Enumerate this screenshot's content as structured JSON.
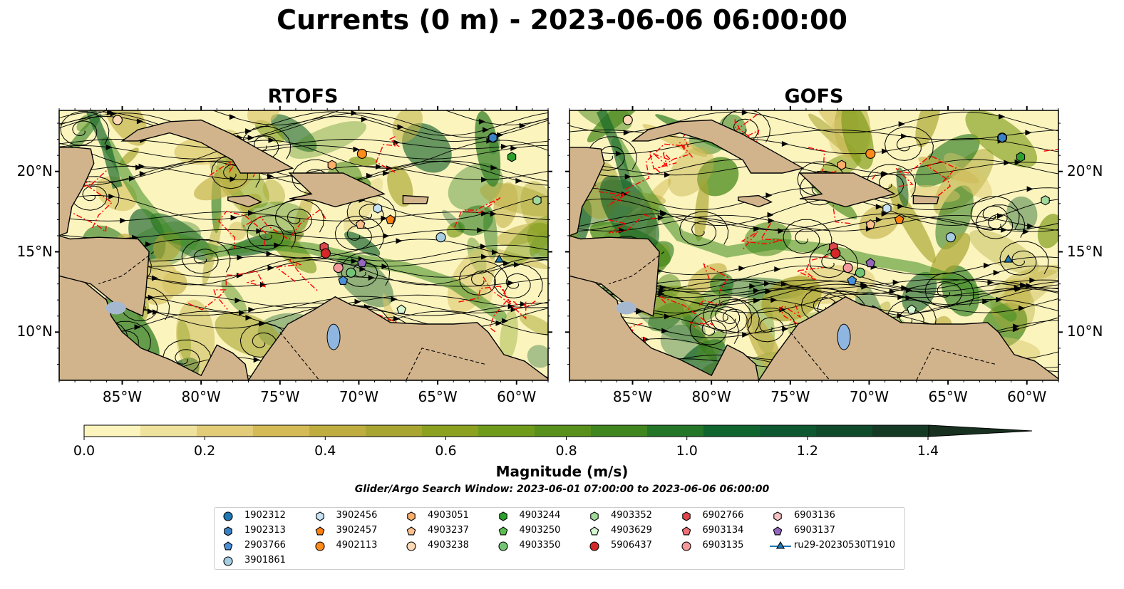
{
  "title": "Currents (0 m) - 2023-06-06 06:00:00",
  "panels": [
    {
      "title": "RTOFS"
    },
    {
      "title": "GOFS"
    }
  ],
  "axes": {
    "lon_ticks": [
      "85°W",
      "80°W",
      "75°W",
      "70°W",
      "65°W",
      "60°W"
    ],
    "lat_ticks": [
      "20°N",
      "15°N",
      "10°N"
    ]
  },
  "colorbar": {
    "label": "Magnitude (m/s)",
    "ticks": [
      "0.0",
      "0.2",
      "0.4",
      "0.6",
      "0.8",
      "1.0",
      "1.2",
      "1.4"
    ],
    "range": [
      0,
      1.5
    ],
    "extend": "max",
    "colors": [
      "#fbf4bd",
      "#efe29d",
      "#e2cc78",
      "#d4bb55",
      "#bfae3f",
      "#a9a531",
      "#8ca11f",
      "#6f9b1a",
      "#58901c",
      "#3f861f",
      "#237628",
      "#10652f",
      "#0d5830",
      "#0f4a2b",
      "#143a25",
      "#18301f"
    ]
  },
  "search_window": "Glider/Argo Search Window: 2023-06-01 07:00:00 to 2023-06-06 06:00:00",
  "map_colors": {
    "land": "#d2b48c",
    "ocean_low": "#fbf4bd",
    "ocean_mid": "#c2b24a",
    "ocean_high": "#2f7d22",
    "front": "#ff0000",
    "rivers": "#9db5d6"
  },
  "legend": [
    {
      "label": "1902312",
      "marker": "circle",
      "color": "#1f77b4"
    },
    {
      "label": "1902313",
      "marker": "hexagon",
      "color": "#3b82c4"
    },
    {
      "label": "2903766",
      "marker": "pentagon",
      "color": "#4a90d9"
    },
    {
      "label": "3901861",
      "marker": "circle",
      "color": "#a6cee3"
    },
    {
      "label": "3902456",
      "marker": "hexagon",
      "color": "#c6e2f5"
    },
    {
      "label": "3902457",
      "marker": "pentagon",
      "color": "#ff7f0e"
    },
    {
      "label": "4902113",
      "marker": "circle",
      "color": "#ff8c1a"
    },
    {
      "label": "4903051",
      "marker": "hexagon",
      "color": "#fdae6b"
    },
    {
      "label": "4903237",
      "marker": "pentagon",
      "color": "#fdc08c"
    },
    {
      "label": "4903238",
      "marker": "circle",
      "color": "#fdd9b5"
    },
    {
      "label": "4903244",
      "marker": "hexagon",
      "color": "#2ca02c"
    },
    {
      "label": "4903250",
      "marker": "pentagon",
      "color": "#5bbf4f"
    },
    {
      "label": "4903350",
      "marker": "circle",
      "color": "#74c476"
    },
    {
      "label": "4903352",
      "marker": "hexagon",
      "color": "#a1d99b"
    },
    {
      "label": "4903629",
      "marker": "pentagon",
      "color": "#d4f5cf"
    },
    {
      "label": "5906437",
      "marker": "circle",
      "color": "#d62728"
    },
    {
      "label": "6902766",
      "marker": "hexagon",
      "color": "#e0474c"
    },
    {
      "label": "6903134",
      "marker": "pentagon",
      "color": "#ef7177"
    },
    {
      "label": "6903135",
      "marker": "circle",
      "color": "#f4999b"
    },
    {
      "label": "6903136",
      "marker": "hexagon",
      "color": "#f7c1c1"
    },
    {
      "label": "6903137",
      "marker": "pentagon",
      "color": "#9467bd"
    },
    {
      "label": "ru29-20230530T1910",
      "marker": "triangle-line",
      "color": "#1f77b4"
    }
  ],
  "floats": [
    {
      "label": "1902312",
      "lon": -61.5,
      "lat": 22.1
    },
    {
      "label": "1902313",
      "lon": -61.5,
      "lat": 22.1
    },
    {
      "label": "4903244",
      "lon": -60.3,
      "lat": 20.9
    },
    {
      "label": "4902113",
      "lon": -69.8,
      "lat": 21.1
    },
    {
      "label": "4903051",
      "lon": -71.7,
      "lat": 20.4
    },
    {
      "label": "4903352",
      "lon": -58.7,
      "lat": 18.2
    },
    {
      "label": "3902456",
      "lon": -68.8,
      "lat": 17.7
    },
    {
      "label": "3902457",
      "lon": -68.0,
      "lat": 17.0
    },
    {
      "label": "4903237",
      "lon": -69.9,
      "lat": 16.7
    },
    {
      "label": "3901861",
      "lon": -64.8,
      "lat": 15.9
    },
    {
      "label": "6902766",
      "lon": -72.2,
      "lat": 15.3
    },
    {
      "label": "5906437",
      "lon": -72.1,
      "lat": 14.9
    },
    {
      "label": "6903135",
      "lon": -71.3,
      "lat": 14.0
    },
    {
      "label": "4903350",
      "lon": -70.5,
      "lat": 13.7
    },
    {
      "label": "6903137",
      "lon": -69.8,
      "lat": 14.3
    },
    {
      "label": "2903766",
      "lon": -71.0,
      "lat": 13.2
    },
    {
      "label": "4903629",
      "lon": -67.3,
      "lat": 11.4
    },
    {
      "label": "4903238",
      "lon": -85.3,
      "lat": 23.2
    },
    {
      "label": "ru29-20230530T1910",
      "lon": -61.1,
      "lat": 14.5
    }
  ]
}
